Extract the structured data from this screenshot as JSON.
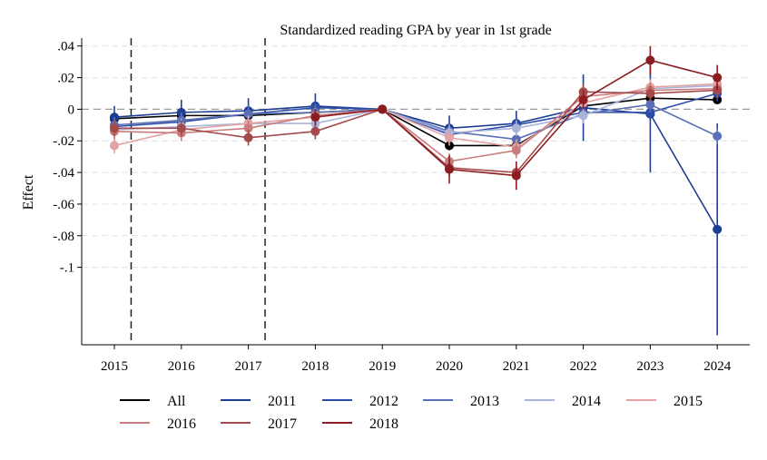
{
  "chart_data": {
    "type": "line",
    "title": "Standardized reading GPA by year in 1st grade",
    "xlabel": "",
    "ylabel": "Effect",
    "x": [
      2015,
      2016,
      2017,
      2018,
      2019,
      2020,
      2021,
      2022,
      2023,
      2024
    ],
    "x_tick_labels": [
      "2015",
      "2016",
      "2017",
      "2018",
      "2019",
      "2020",
      "2021",
      "2022",
      "2023",
      "2024"
    ],
    "ylim": [
      -0.149,
      0.045
    ],
    "y_ticks": [
      0.04,
      0.02,
      0,
      -0.02,
      -0.04,
      -0.06,
      -0.08,
      -0.1
    ],
    "y_tick_labels": [
      ".04",
      ".02",
      "0",
      "-.02",
      "-.04",
      "-.06",
      "-.08",
      "-.1"
    ],
    "grid": true,
    "reference_hline": 0,
    "reference_vlines": [
      2015.25,
      2017.25
    ],
    "legend_position": "bottom",
    "series": [
      {
        "name": "All",
        "color": "#000000",
        "values": [
          -0.006,
          -0.004,
          -0.004,
          -0.002,
          0,
          -0.023,
          -0.023,
          0.002,
          0.007,
          0.006
        ],
        "ci": [
          [
            -0.008,
            -0.004
          ],
          [
            -0.006,
            -0.002
          ],
          [
            -0.006,
            -0.002
          ],
          [
            -0.004,
            0.0
          ],
          [
            0,
            0
          ],
          [
            -0.026,
            -0.02
          ],
          [
            -0.026,
            -0.02
          ],
          [
            0.0,
            0.004
          ],
          [
            0.005,
            0.009
          ],
          [
            0.004,
            0.008
          ]
        ]
      },
      {
        "name": "2011",
        "color": "#1c3f94",
        "values": [
          -0.005,
          -0.002,
          -0.001,
          0.002,
          0,
          -0.012,
          -0.009,
          0.001,
          -0.003,
          -0.076
        ],
        "ci": [
          [
            -0.012,
            0.002
          ],
          [
            -0.01,
            0.006
          ],
          [
            -0.009,
            0.007
          ],
          [
            -0.006,
            0.01
          ],
          [
            0,
            0
          ],
          [
            -0.02,
            -0.004
          ],
          [
            -0.017,
            -0.001
          ],
          [
            -0.02,
            0.022
          ],
          [
            -0.04,
            0.034
          ],
          [
            -0.143,
            -0.009
          ]
        ]
      },
      {
        "name": "2012",
        "color": "#2c4ea8",
        "values": [
          -0.011,
          -0.008,
          -0.003,
          0.001,
          0,
          -0.016,
          -0.01,
          -0.002,
          -0.002,
          0.01
        ],
        "ci": [
          [
            -0.016,
            -0.006
          ],
          [
            -0.013,
            -0.003
          ],
          [
            -0.008,
            0.002
          ],
          [
            -0.004,
            0.006
          ],
          [
            0,
            0
          ],
          [
            -0.021,
            -0.011
          ],
          [
            -0.015,
            -0.005
          ],
          [
            -0.007,
            0.003
          ],
          [
            -0.007,
            0.003
          ],
          [
            0.005,
            0.015
          ]
        ]
      },
      {
        "name": "2013",
        "color": "#5a6fb5",
        "values": [
          -0.01,
          -0.007,
          -0.003,
          -0.002,
          0,
          -0.014,
          -0.019,
          -0.003,
          0.003,
          -0.017
        ],
        "ci": [
          [
            -0.015,
            -0.005
          ],
          [
            -0.012,
            -0.002
          ],
          [
            -0.008,
            0.002
          ],
          [
            -0.007,
            0.003
          ],
          [
            0,
            0
          ],
          [
            -0.019,
            -0.009
          ],
          [
            -0.024,
            -0.014
          ],
          [
            -0.008,
            0.002
          ],
          [
            -0.002,
            0.008
          ],
          [
            -0.022,
            -0.012
          ]
        ]
      },
      {
        "name": "2014",
        "color": "#aab3d9",
        "values": [
          -0.013,
          -0.011,
          -0.009,
          -0.009,
          0,
          -0.015,
          -0.012,
          -0.004,
          0.013,
          0.015
        ],
        "ci": [
          [
            -0.018,
            -0.008
          ],
          [
            -0.016,
            -0.006
          ],
          [
            -0.014,
            -0.004
          ],
          [
            -0.014,
            -0.004
          ],
          [
            0,
            0
          ],
          [
            -0.02,
            -0.01
          ],
          [
            -0.017,
            -0.007
          ],
          [
            -0.009,
            0.001
          ],
          [
            0.008,
            0.018
          ],
          [
            0.01,
            0.02
          ]
        ]
      },
      {
        "name": "2015",
        "color": "#e3a3a3",
        "values": [
          -0.023,
          -0.013,
          -0.009,
          -0.005,
          0,
          -0.018,
          -0.024,
          0.004,
          0.014,
          0.016
        ],
        "ci": [
          [
            -0.028,
            -0.018
          ],
          [
            -0.018,
            -0.008
          ],
          [
            -0.014,
            -0.004
          ],
          [
            -0.01,
            0.0
          ],
          [
            0,
            0
          ],
          [
            -0.023,
            -0.013
          ],
          [
            -0.029,
            -0.019
          ],
          [
            -0.001,
            0.009
          ],
          [
            0.009,
            0.019
          ],
          [
            0.011,
            0.021
          ]
        ]
      },
      {
        "name": "2016",
        "color": "#c97c7c",
        "values": [
          -0.014,
          -0.015,
          -0.012,
          -0.004,
          0,
          -0.033,
          -0.026,
          0.008,
          0.012,
          0.013
        ],
        "ci": [
          [
            -0.019,
            -0.009
          ],
          [
            -0.02,
            -0.01
          ],
          [
            -0.017,
            -0.007
          ],
          [
            -0.009,
            0.001
          ],
          [
            0,
            0
          ],
          [
            -0.038,
            -0.028
          ],
          [
            -0.031,
            -0.021
          ],
          [
            0.003,
            0.013
          ],
          [
            0.007,
            0.017
          ],
          [
            0.008,
            0.018
          ]
        ]
      },
      {
        "name": "2017",
        "color": "#a54a4a",
        "values": [
          -0.012,
          -0.012,
          -0.018,
          -0.014,
          0,
          -0.037,
          -0.04,
          0.011,
          0.01,
          0.012
        ],
        "ci": [
          [
            -0.017,
            -0.007
          ],
          [
            -0.017,
            -0.007
          ],
          [
            -0.023,
            -0.013
          ],
          [
            -0.019,
            -0.009
          ],
          [
            0,
            0
          ],
          [
            -0.042,
            -0.032
          ],
          [
            -0.045,
            -0.035
          ],
          [
            0.006,
            0.016
          ],
          [
            0.005,
            0.015
          ],
          [
            0.007,
            0.017
          ]
        ]
      },
      {
        "name": "2018",
        "color": "#8b1c22",
        "values": [
          null,
          null,
          null,
          -0.005,
          0,
          -0.038,
          -0.042,
          0.006,
          0.031,
          0.02
        ],
        "ci": [
          null,
          null,
          null,
          [
            -0.01,
            0.0
          ],
          [
            0,
            0
          ],
          [
            -0.047,
            -0.029
          ],
          [
            -0.051,
            -0.033
          ],
          [
            0.0,
            0.012
          ],
          [
            0.022,
            0.04
          ],
          [
            0.012,
            0.028
          ]
        ]
      }
    ]
  }
}
